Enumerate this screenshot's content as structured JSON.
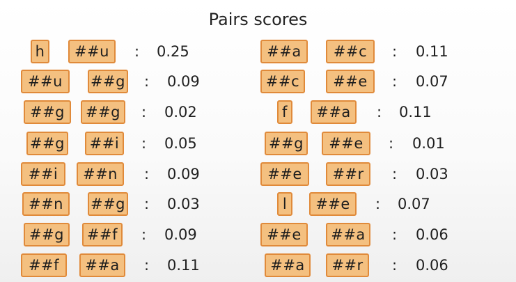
{
  "title": "Pairs scores",
  "colors": {
    "token_fill": "#f4c080",
    "token_border": "#e08a3a"
  },
  "left": [
    {
      "a": "h",
      "b": "##u",
      "score": "0.25"
    },
    {
      "a": "##u",
      "b": "##g",
      "score": "0.09"
    },
    {
      "a": "##g",
      "b": "##g",
      "score": "0.02"
    },
    {
      "a": "##g",
      "b": "##i",
      "score": "0.05"
    },
    {
      "a": "##i",
      "b": "##n",
      "score": "0.09"
    },
    {
      "a": "##n",
      "b": "##g",
      "score": "0.03"
    },
    {
      "a": "##g",
      "b": "##f",
      "score": "0.09"
    },
    {
      "a": "##f",
      "b": "##a",
      "score": "0.11"
    }
  ],
  "right": [
    {
      "a": "##a",
      "b": "##c",
      "score": "0.11"
    },
    {
      "a": "##c",
      "b": "##e",
      "score": "0.07"
    },
    {
      "a": "f",
      "b": "##a",
      "score": "0.11"
    },
    {
      "a": "##g",
      "b": "##e",
      "score": "0.01"
    },
    {
      "a": "##e",
      "b": "##r",
      "score": "0.03"
    },
    {
      "a": "l",
      "b": "##e",
      "score": "0.07"
    },
    {
      "a": "##e",
      "b": "##a",
      "score": "0.06"
    },
    {
      "a": "##a",
      "b": "##r",
      "score": "0.06"
    }
  ],
  "separator": ":"
}
